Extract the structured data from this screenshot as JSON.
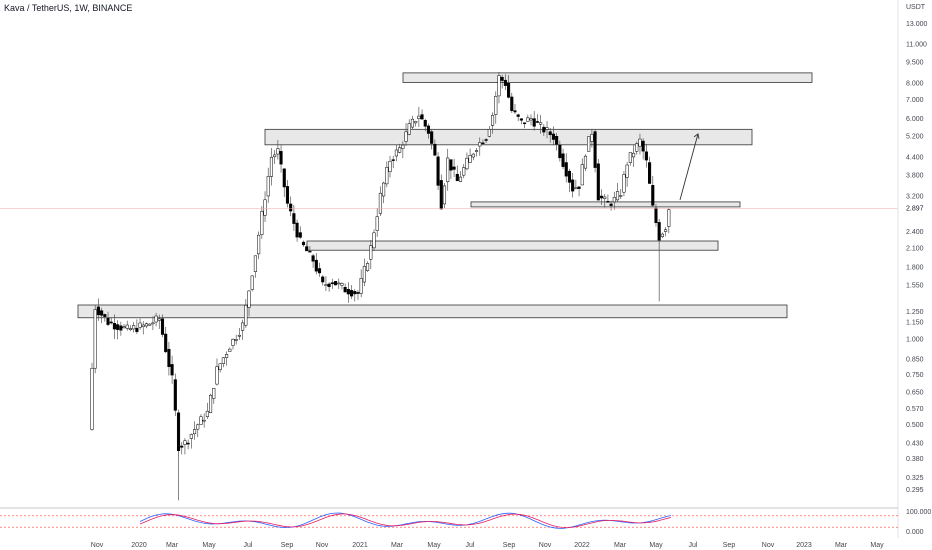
{
  "header": {
    "symbol_title": "Kava / TetherUS, 1W, BINANCE"
  },
  "chart_data": {
    "type": "candlestick",
    "title": "Kava / TetherUS, 1W, BINANCE",
    "currency_label": "USDT",
    "current_price_label": "2.897",
    "current_price": 2.897,
    "y_scale": "log",
    "ylim": [
      0.26,
      14.5
    ],
    "price_ticks": [
      "13.000",
      "11.000",
      "9.500",
      "8.000",
      "7.000",
      "6.000",
      "5.200",
      "4.400",
      "3.800",
      "3.200",
      "2.400",
      "2.100",
      "1.800",
      "1.550",
      "1.250",
      "1.150",
      "1.000",
      "0.850",
      "0.750",
      "0.650",
      "0.570",
      "0.500",
      "0.430",
      "0.380",
      "0.325",
      "0.295"
    ],
    "time_labels": [
      "Nov",
      "2020",
      "Mar",
      "May",
      "Jul",
      "Sep",
      "Nov",
      "2021",
      "Mar",
      "May",
      "Jul",
      "Sep",
      "Nov",
      "2022",
      "Mar",
      "May",
      "Jul",
      "Sep",
      "Nov",
      "2023",
      "Mar",
      "May"
    ],
    "zones": [
      {
        "from": "2019-10",
        "to": "2022-11",
        "low": 1.19,
        "high": 1.32
      },
      {
        "from": "2020-07",
        "to": "2022-05",
        "low": 4.85,
        "high": 5.5
      },
      {
        "from": "2021-03",
        "to": "2022-11",
        "low": 8.05,
        "high": 8.7
      },
      {
        "from": "2020-12",
        "to": "2022-06",
        "low": 2.06,
        "high": 2.22
      },
      {
        "from": "2021-07",
        "to": "2022-07",
        "low": 2.95,
        "high": 3.05
      }
    ],
    "projection_arrow": {
      "from_price": 3.1,
      "to_price": 5.3
    },
    "stoch_rsi": {
      "ticks": [
        "100.000",
        "0.000"
      ],
      "upper_band": 80,
      "lower_band": 20
    }
  },
  "colors": {
    "up": "#ffffff",
    "down": "#000000",
    "wick": "#555555",
    "zone_fill": "#e8e8e8",
    "zone_border": "#333333",
    "k_line": "#2962ff",
    "d_line": "#e91e63",
    "band": "#f44336",
    "price_line": "#f6a6a6"
  }
}
